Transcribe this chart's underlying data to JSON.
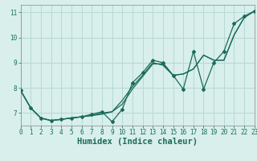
{
  "xlabel": "Humidex (Indice chaleur)",
  "bg_color": "#d8efec",
  "grid_color": "#b8d8d4",
  "line_color": "#1a6b5a",
  "series": [
    {
      "x": [
        0,
        1,
        2,
        3,
        4,
        5,
        6,
        7,
        8,
        9,
        10,
        11,
        12,
        13,
        14,
        15,
        16,
        17,
        18,
        19,
        20,
        21,
        22,
        23
      ],
      "y": [
        7.9,
        7.2,
        6.8,
        6.7,
        6.75,
        6.8,
        6.85,
        6.95,
        7.05,
        6.65,
        7.15,
        8.2,
        8.6,
        9.1,
        9.0,
        8.5,
        7.95,
        9.45,
        7.95,
        9.0,
        9.45,
        10.55,
        10.85,
        11.05
      ],
      "has_markers": true
    },
    {
      "x": [
        0,
        1,
        2,
        3,
        4,
        5,
        6,
        7,
        8,
        9,
        10,
        11,
        12,
        13,
        14,
        15,
        16,
        17,
        18,
        19,
        20,
        21,
        22,
        23
      ],
      "y": [
        7.9,
        7.2,
        6.8,
        6.7,
        6.75,
        6.8,
        6.85,
        6.9,
        6.95,
        7.05,
        7.35,
        7.95,
        8.45,
        8.95,
        8.95,
        8.5,
        8.55,
        8.75,
        9.3,
        9.1,
        9.1,
        10.1,
        10.8,
        11.05
      ],
      "has_markers": false
    },
    {
      "x": [
        0,
        1,
        2,
        3,
        4,
        5,
        6,
        7,
        8,
        9,
        10,
        11,
        12,
        13,
        14,
        15,
        16,
        17,
        18,
        19,
        20,
        21,
        22,
        23
      ],
      "y": [
        7.9,
        7.2,
        6.8,
        6.7,
        6.75,
        6.8,
        6.85,
        6.9,
        7.0,
        7.05,
        7.5,
        8.05,
        8.5,
        9.0,
        8.9,
        8.5,
        8.55,
        8.75,
        9.3,
        9.1,
        9.1,
        10.1,
        10.8,
        11.05
      ],
      "has_markers": false
    }
  ],
  "xlim": [
    0,
    23
  ],
  "ylim": [
    6.5,
    11.3
  ],
  "yticks": [
    7,
    8,
    9,
    10,
    11
  ],
  "xticks": [
    0,
    1,
    2,
    3,
    4,
    5,
    6,
    7,
    8,
    9,
    10,
    11,
    12,
    13,
    14,
    15,
    16,
    17,
    18,
    19,
    20,
    21,
    22,
    23
  ],
  "tick_fontsize": 5.5,
  "xlabel_fontsize": 7.5
}
